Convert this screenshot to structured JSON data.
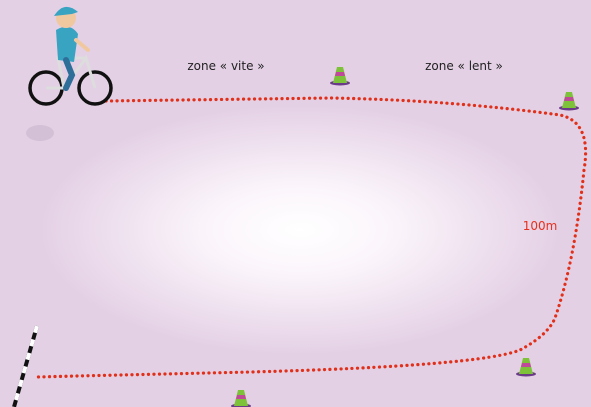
{
  "labels": {
    "zone_fast": "zone « vite »",
    "zone_slow": "zone « lent »",
    "distance": "100m"
  }
}
